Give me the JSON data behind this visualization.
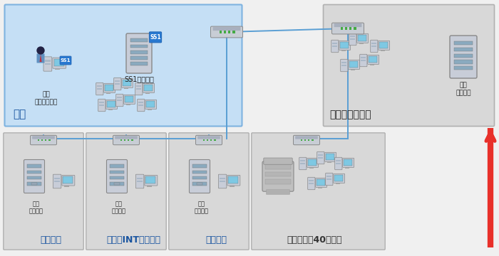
{
  "figure_bg": "#f0f0f0",
  "honsha_bg": "#c5dff5",
  "honsha_border": "#7fb3e0",
  "section_bg": "#d8d8d8",
  "section_border": "#b0b0b0",
  "dc_bg": "#d8d8d8",
  "dc_border": "#b0b0b0",
  "line_color": "#5a9fd4",
  "arrow_color": "#e8302a",
  "honsha_label": "本社",
  "honsha_label_color": "#1a55a0",
  "ss1_label": "SS1サーバー",
  "mgmt_label": "管理\nクライアント",
  "dc_label": "データセンター",
  "dc_label_color": "#222222",
  "collect_label": "収集\nサーバー",
  "sections": [
    {
      "label": "三木工場",
      "color": "#1a55a0"
    },
    {
      "label": "フルノINTセンター",
      "color": "#1a55a0"
    },
    {
      "label": "東京支社",
      "color": "#1a55a0"
    },
    {
      "label": "営業所（約40拠点）",
      "color": "#333333"
    }
  ],
  "sw_color": "#b0bac8",
  "server_color": "#c8cdd8",
  "server_stripe": "#8aaabf",
  "pc_body": "#c8cdd8",
  "pc_screen": "#7ec8e3",
  "printer_color": "#c0c0c0"
}
